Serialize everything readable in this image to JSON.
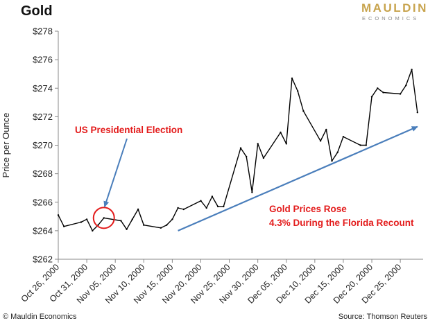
{
  "header": {
    "title": "Gold",
    "logo_top": "MAULDIN",
    "logo_bottom": "ECONOMICS"
  },
  "footer": {
    "left": "© Mauldin Economics",
    "right": "Source: Thomson Reuters"
  },
  "colors": {
    "line": "#000000",
    "trend_arrow": "#4a7ebb",
    "annotation": "#e31b1b",
    "logo_gold": "#c8a44e"
  },
  "chart_data": {
    "type": "line",
    "title": "Gold",
    "xlabel": "",
    "ylabel": "Price per Ounce",
    "ylim": [
      262,
      278
    ],
    "y_ticks": [
      262,
      264,
      266,
      268,
      270,
      272,
      274,
      276,
      278
    ],
    "y_tick_labels": [
      "$262",
      "$264",
      "$266",
      "$268",
      "$270",
      "$272",
      "$274",
      "$276",
      "$278"
    ],
    "x_ticks": [
      "Oct 26, 2000",
      "Oct 31, 2000",
      "Nov 05, 2000",
      "Nov 10, 2000",
      "Nov 15, 2000",
      "Nov 20, 2000",
      "Nov 25, 2000",
      "Nov 30, 2000",
      "Dec 05, 2000",
      "Dec 10, 2000",
      "Dec 15, 2000",
      "Dec 20, 2000",
      "Dec 25, 2000"
    ],
    "grid": false,
    "series": [
      {
        "x": [
          "2000-10-26",
          "2000-10-27",
          "2000-10-30",
          "2000-10-31",
          "2000-11-01",
          "2000-11-02",
          "2000-11-03",
          "2000-11-06",
          "2000-11-07",
          "2000-11-08",
          "2000-11-09",
          "2000-11-10",
          "2000-11-13",
          "2000-11-14",
          "2000-11-15",
          "2000-11-16",
          "2000-11-17",
          "2000-11-20",
          "2000-11-21",
          "2000-11-22",
          "2000-11-23",
          "2000-11-24",
          "2000-11-27",
          "2000-11-28",
          "2000-11-29",
          "2000-11-30",
          "2000-12-01",
          "2000-12-04",
          "2000-12-05",
          "2000-12-06",
          "2000-12-07",
          "2000-12-08",
          "2000-12-11",
          "2000-12-12",
          "2000-12-13",
          "2000-12-14",
          "2000-12-15",
          "2000-12-18",
          "2000-12-19",
          "2000-12-20",
          "2000-12-21",
          "2000-12-22",
          "2000-12-25",
          "2000-12-26",
          "2000-12-27",
          "2000-12-28"
        ],
        "values": [
          265.1,
          264.3,
          264.6,
          264.8,
          264.0,
          264.4,
          264.9,
          264.7,
          264.1,
          264.8,
          265.5,
          264.4,
          264.2,
          264.4,
          264.8,
          265.6,
          265.5,
          266.1,
          265.6,
          266.4,
          265.7,
          265.7,
          269.8,
          269.2,
          266.7,
          270.1,
          269.1,
          270.9,
          270.1,
          274.7,
          273.8,
          272.4,
          270.3,
          271.1,
          268.9,
          269.5,
          270.6,
          270.0,
          270.0,
          273.4,
          274.0,
          273.7,
          273.6,
          274.2,
          275.3,
          272.3
        ]
      }
    ],
    "annotations": [
      {
        "text": "US Presidential Election",
        "target_date": "2000-11-03"
      },
      {
        "text": "Gold Prices Rose",
        "text2": "4.3% During the Florida Recount"
      }
    ],
    "trend_arrow": {
      "from": [
        "2000-11-16",
        264.0
      ],
      "to": [
        "2000-12-28",
        271.3
      ]
    }
  }
}
